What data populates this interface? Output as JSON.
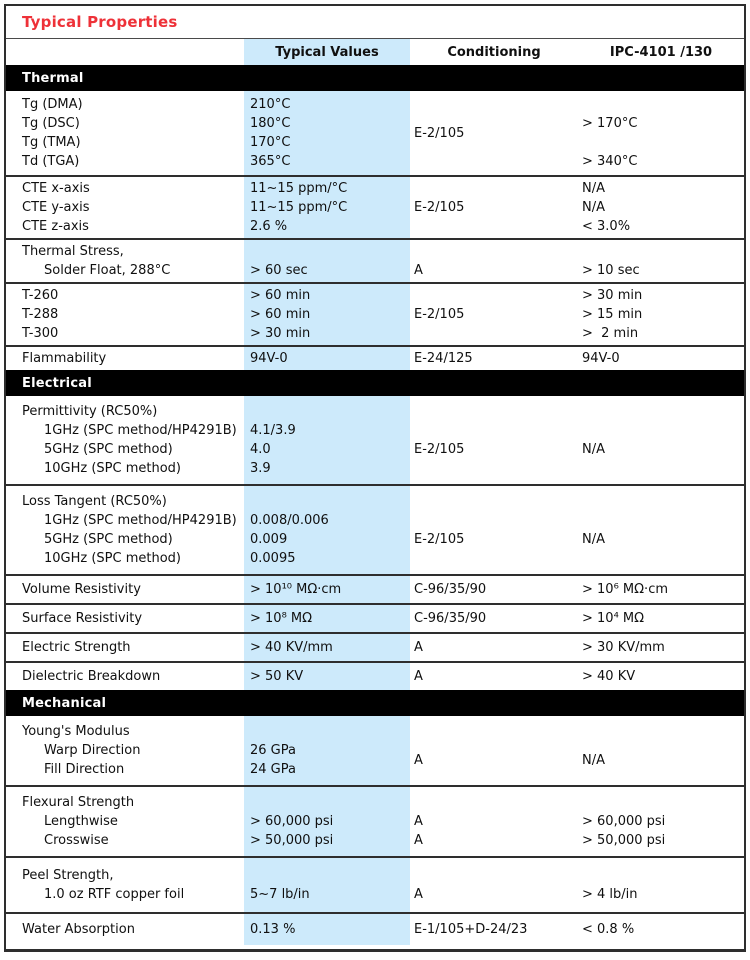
{
  "title": "Typical Properties",
  "colors": {
    "accent_red": "#ee3138",
    "highlight_blue": "#cdeafb",
    "section_band": "#000000",
    "border": "#2e2e2e"
  },
  "header": {
    "typical_values": "Typical Values",
    "conditioning": "Conditioning",
    "ipc": "IPC-4101 /130"
  },
  "sections": [
    {
      "label": "Thermal",
      "groups": [
        {
          "pad": "md",
          "cond_center": "E-2/105",
          "center_from": 0,
          "lines": [
            {
              "label": "Tg (DMA)",
              "value": "210°C"
            },
            {
              "label": "Tg (DSC)",
              "value": "180°C",
              "ipc": "> 170°C"
            },
            {
              "label": "Tg (TMA)",
              "value": "170°C"
            },
            {
              "label": "Td (TGA)",
              "value": "365°C",
              "ipc": "> 340°C"
            }
          ]
        },
        {
          "pad": "sm",
          "lines": [
            {
              "label": "CTE x-axis",
              "value": "11~15 ppm/°C",
              "ipc": "N/A"
            },
            {
              "label": "CTE y-axis",
              "value": "11~15 ppm/°C",
              "cond": "E-2/105",
              "ipc": "N/A"
            },
            {
              "label": "CTE z-axis",
              "value": "2.6 %",
              "ipc": "< 3.0%"
            }
          ]
        },
        {
          "pad": "sm",
          "lines": [
            {
              "label": "Thermal Stress,"
            },
            {
              "label": "Solder Float, 288°C",
              "indent": true,
              "value": "> 60 sec",
              "cond": "A",
              "ipc": "> 10 sec"
            }
          ]
        },
        {
          "pad": "sm",
          "lines": [
            {
              "label": "T-260",
              "value": "> 60 min",
              "ipc": "> 30 min"
            },
            {
              "label": "T-288",
              "value": "> 60 min",
              "cond": "E-2/105",
              "ipc": "> 15 min"
            },
            {
              "label": "T-300",
              "value": "> 30 min",
              "ipc": ">  2 min"
            }
          ]
        },
        {
          "pad": "sm",
          "lines": [
            {
              "label": "Flammability",
              "value": "94V-0",
              "cond": "E-24/125",
              "ipc": "94V-0"
            }
          ]
        }
      ]
    },
    {
      "label": "Electrical",
      "groups": [
        {
          "pad": "lg",
          "cond_center": "E-2/105",
          "ipc_center": "N/A",
          "center_from": 1,
          "lines": [
            {
              "label": "Permittivity (RC50%)"
            },
            {
              "label": "1GHz (SPC method/HP4291B)",
              "indent": true,
              "value": "4.1/3.9"
            },
            {
              "label": "5GHz (SPC method)",
              "indent": true,
              "value": "4.0"
            },
            {
              "label": "10GHz (SPC method)",
              "indent": true,
              "value": "3.9"
            }
          ]
        },
        {
          "pad": "lg",
          "cond_center": "E-2/105",
          "ipc_center": "N/A",
          "center_from": 1,
          "lines": [
            {
              "label": "Loss Tangent (RC50%)"
            },
            {
              "label": "1GHz (SPC method/HP4291B)",
              "indent": true,
              "value": "0.008/0.006"
            },
            {
              "label": "5GHz (SPC method)",
              "indent": true,
              "value": "0.009"
            },
            {
              "label": "10GHz (SPC method)",
              "indent": true,
              "value": "0.0095"
            }
          ]
        },
        {
          "pad": "md",
          "lines": [
            {
              "label": "Volume Resistivity",
              "value": "> 10¹⁰ MΩ·cm",
              "cond": "C-96/35/90",
              "ipc": "> 10⁶ MΩ·cm"
            }
          ]
        },
        {
          "pad": "md",
          "lines": [
            {
              "label": "Surface Resistivity",
              "value": "> 10⁸ MΩ",
              "cond": "C-96/35/90",
              "ipc": "> 10⁴ MΩ"
            }
          ]
        },
        {
          "pad": "md",
          "lines": [
            {
              "label": "Electric Strength",
              "value": "> 40 KV/mm",
              "cond": "A",
              "ipc": "> 30 KV/mm"
            }
          ]
        },
        {
          "pad": "md",
          "lines": [
            {
              "label": "Dielectric Breakdown",
              "value": "> 50 KV",
              "cond": "A",
              "ipc": "> 40 KV"
            }
          ]
        }
      ]
    },
    {
      "label": "Mechanical",
      "groups": [
        {
          "pad": "lg",
          "cond_center": "A",
          "ipc_center": "N/A",
          "center_from": 1,
          "lines": [
            {
              "label": "Young's Modulus"
            },
            {
              "label": "Warp Direction",
              "indent": true,
              "value": "26 GPa"
            },
            {
              "label": "Fill Direction",
              "indent": true,
              "value": "24 GPa"
            }
          ]
        },
        {
          "pad": "lg",
          "lines": [
            {
              "label": "Flexural Strength"
            },
            {
              "label": "Lengthwise",
              "indent": true,
              "value": "> 60,000 psi",
              "cond": "A",
              "ipc": "> 60,000 psi"
            },
            {
              "label": "Crosswise",
              "indent": true,
              "value": "> 50,000 psi",
              "cond": "A",
              "ipc": "> 50,000 psi"
            }
          ]
        },
        {
          "pad": "xl",
          "lines": [
            {
              "label": "Peel Strength,"
            },
            {
              "label": "1.0 oz RTF copper foil",
              "indent": true,
              "value": "5~7 lb/in",
              "cond": "A",
              "ipc": "> 4 lb/in"
            }
          ]
        },
        {
          "pad": "lg",
          "lines": [
            {
              "label": "Water Absorption",
              "value": "0.13 %",
              "cond": "E-1/105+D-24/23",
              "ipc": "< 0.8 %"
            }
          ]
        }
      ]
    }
  ]
}
